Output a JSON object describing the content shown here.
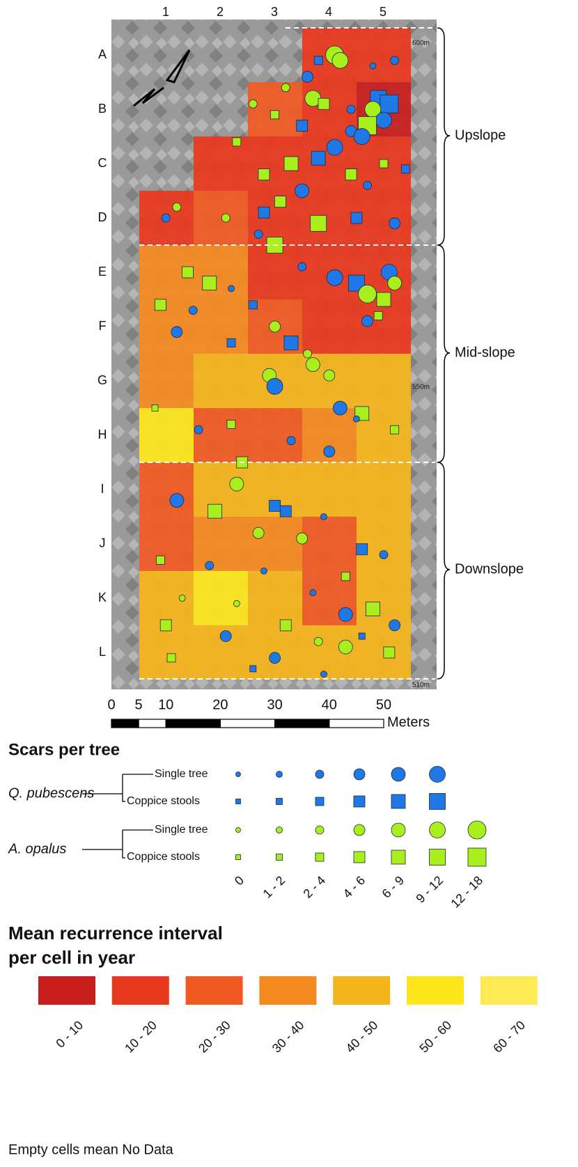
{
  "map": {
    "columns": [
      "1",
      "2",
      "3",
      "4",
      "5"
    ],
    "rows": [
      "A",
      "B",
      "C",
      "D",
      "E",
      "F",
      "G",
      "H",
      "I",
      "J",
      "K",
      "L"
    ],
    "elevations": [
      "600m",
      "550m",
      "510m"
    ],
    "zones": [
      "Upslope",
      "Mid-slope",
      "Downslope"
    ],
    "cells": [
      [
        null,
        null,
        null,
        1,
        1
      ],
      [
        null,
        null,
        2,
        1,
        0
      ],
      [
        null,
        1,
        1,
        1,
        1
      ],
      [
        1,
        2,
        1,
        1,
        1
      ],
      [
        3,
        3,
        1,
        1,
        1
      ],
      [
        3,
        3,
        2,
        1,
        1
      ],
      [
        3,
        4,
        4,
        4,
        4
      ],
      [
        5,
        2,
        2,
        3,
        4
      ],
      [
        2,
        4,
        4,
        4,
        4
      ],
      [
        2,
        3,
        3,
        2,
        4
      ],
      [
        4,
        5,
        4,
        2,
        4
      ],
      [
        4,
        4,
        4,
        4,
        4
      ]
    ],
    "trees": [
      [
        41,
        5,
        1,
        0,
        6
      ],
      [
        42,
        6,
        1,
        0,
        5
      ],
      [
        38,
        6,
        0,
        1,
        2
      ],
      [
        52,
        6,
        0,
        0,
        2
      ],
      [
        48,
        7,
        0,
        0,
        1
      ],
      [
        36,
        9,
        0,
        0,
        3
      ],
      [
        32,
        11,
        1,
        0,
        2
      ],
      [
        37,
        13,
        1,
        0,
        5
      ],
      [
        39,
        14,
        1,
        1,
        3
      ],
      [
        44,
        15,
        0,
        0,
        2
      ],
      [
        49,
        13,
        0,
        1,
        5
      ],
      [
        51,
        14,
        0,
        1,
        6
      ],
      [
        48,
        15,
        1,
        0,
        5
      ],
      [
        50,
        17,
        0,
        0,
        5
      ],
      [
        47,
        18,
        1,
        1,
        6
      ],
      [
        44,
        19,
        0,
        0,
        3
      ],
      [
        35,
        18,
        0,
        1,
        3
      ],
      [
        26,
        14,
        1,
        0,
        2
      ],
      [
        30,
        16,
        1,
        1,
        2
      ],
      [
        46,
        20,
        0,
        0,
        5
      ],
      [
        41,
        22,
        0,
        0,
        5
      ],
      [
        38,
        24,
        0,
        1,
        4
      ],
      [
        33,
        25,
        1,
        1,
        4
      ],
      [
        28,
        27,
        1,
        1,
        3
      ],
      [
        23,
        21,
        1,
        1,
        2
      ],
      [
        50,
        25,
        1,
        1,
        2
      ],
      [
        54,
        26,
        0,
        1,
        2
      ],
      [
        44,
        27,
        1,
        1,
        3
      ],
      [
        47,
        29,
        0,
        0,
        2
      ],
      [
        35,
        30,
        0,
        0,
        4
      ],
      [
        31,
        32,
        1,
        1,
        3
      ],
      [
        28,
        34,
        0,
        1,
        3
      ],
      [
        38,
        36,
        1,
        1,
        5
      ],
      [
        45,
        35,
        0,
        1,
        3
      ],
      [
        52,
        36,
        0,
        0,
        3
      ],
      [
        12,
        33,
        1,
        0,
        2
      ],
      [
        10,
        35,
        0,
        0,
        2
      ],
      [
        21,
        35,
        1,
        0,
        2
      ],
      [
        27,
        38,
        0,
        0,
        2
      ],
      [
        30,
        40,
        1,
        1,
        5
      ],
      [
        35,
        44,
        0,
        0,
        2
      ],
      [
        41,
        46,
        0,
        0,
        5
      ],
      [
        45,
        47,
        0,
        1,
        5
      ],
      [
        51,
        45,
        0,
        0,
        5
      ],
      [
        52,
        47,
        1,
        0,
        4
      ],
      [
        47,
        49,
        1,
        0,
        6
      ],
      [
        50,
        50,
        1,
        1,
        4
      ],
      [
        14,
        45,
        1,
        1,
        3
      ],
      [
        18,
        47,
        1,
        1,
        4
      ],
      [
        22,
        48,
        0,
        0,
        1
      ],
      [
        9,
        51,
        1,
        1,
        3
      ],
      [
        15,
        52,
        0,
        0,
        2
      ],
      [
        26,
        51,
        0,
        1,
        2
      ],
      [
        30,
        55,
        1,
        0,
        3
      ],
      [
        33,
        58,
        0,
        1,
        4
      ],
      [
        47,
        54,
        0,
        0,
        3
      ],
      [
        49,
        53,
        1,
        1,
        2
      ],
      [
        12,
        56,
        0,
        0,
        3
      ],
      [
        22,
        58,
        0,
        1,
        2
      ],
      [
        36,
        60,
        1,
        0,
        2
      ],
      [
        29,
        64,
        1,
        0,
        4
      ],
      [
        37,
        62,
        1,
        0,
        4
      ],
      [
        40,
        64,
        1,
        0,
        3
      ],
      [
        30,
        66,
        0,
        0,
        5
      ],
      [
        42,
        70,
        0,
        0,
        4
      ],
      [
        46,
        71,
        1,
        1,
        4
      ],
      [
        8,
        70,
        1,
        1,
        1
      ],
      [
        16,
        74,
        0,
        0,
        2
      ],
      [
        22,
        73,
        1,
        1,
        2
      ],
      [
        33,
        76,
        0,
        0,
        2
      ],
      [
        45,
        72,
        0,
        0,
        1
      ],
      [
        52,
        74,
        1,
        1,
        2
      ],
      [
        40,
        78,
        0,
        0,
        3
      ],
      [
        24,
        80,
        1,
        1,
        3
      ],
      [
        23,
        84,
        1,
        0,
        4
      ],
      [
        12,
        87,
        0,
        0,
        4
      ],
      [
        19,
        89,
        1,
        1,
        4
      ],
      [
        30,
        88,
        0,
        1,
        3
      ],
      [
        32,
        89,
        0,
        1,
        3
      ],
      [
        39,
        90,
        0,
        0,
        1
      ],
      [
        27,
        93,
        1,
        0,
        3
      ],
      [
        35,
        94,
        1,
        0,
        3
      ],
      [
        46,
        96,
        0,
        1,
        3
      ],
      [
        9,
        98,
        1,
        1,
        2
      ],
      [
        18,
        99,
        0,
        0,
        2
      ],
      [
        28,
        100,
        0,
        0,
        1
      ],
      [
        43,
        101,
        1,
        1,
        2
      ],
      [
        50,
        97,
        0,
        0,
        2
      ],
      [
        13,
        105,
        1,
        0,
        1
      ],
      [
        23,
        106,
        1,
        0,
        1
      ],
      [
        37,
        104,
        0,
        0,
        1
      ],
      [
        43,
        108,
        0,
        0,
        4
      ],
      [
        48,
        107,
        1,
        1,
        4
      ],
      [
        10,
        110,
        1,
        1,
        3
      ],
      [
        21,
        112,
        0,
        0,
        3
      ],
      [
        32,
        110,
        1,
        1,
        3
      ],
      [
        38,
        113,
        1,
        0,
        2
      ],
      [
        46,
        112,
        0,
        1,
        1
      ],
      [
        52,
        110,
        0,
        0,
        3
      ],
      [
        30,
        116,
        0,
        0,
        3
      ],
      [
        11,
        116,
        1,
        1,
        2
      ],
      [
        43,
        114,
        1,
        0,
        4
      ],
      [
        51,
        115,
        1,
        1,
        3
      ],
      [
        26,
        118,
        0,
        1,
        1
      ],
      [
        39,
        119,
        0,
        0,
        1
      ]
    ],
    "scale": {
      "ticks": [
        0,
        5,
        10,
        20,
        30,
        40,
        50
      ],
      "unit": "Meters"
    },
    "legend": {
      "title": "Scars per tree",
      "species": [
        {
          "name": "Q. pubescens",
          "color": "#1f78e6"
        },
        {
          "name": "A. opalus",
          "color": "#a8ef1c"
        }
      ],
      "forms": [
        "Single tree",
        "Coppice stools"
      ],
      "size_classes": [
        "0",
        "1 - 2",
        "2 - 4",
        "4 - 6",
        "6 - 9",
        "9 - 12",
        "12 - 18"
      ]
    },
    "recurrence": {
      "title": [
        "Mean recurrence interval",
        "per cell in year"
      ],
      "classes": [
        "0 - 10",
        "10 - 20",
        "20 - 30",
        "30 - 40",
        "40 - 50",
        "50 - 60",
        "60 - 70"
      ],
      "colors": [
        "#c81e1e",
        "#e8391e",
        "#f05a22",
        "#f58a1f",
        "#f5b51c",
        "#fde61b",
        "#fdea55"
      ]
    },
    "note": "Empty cells mean No Data"
  }
}
